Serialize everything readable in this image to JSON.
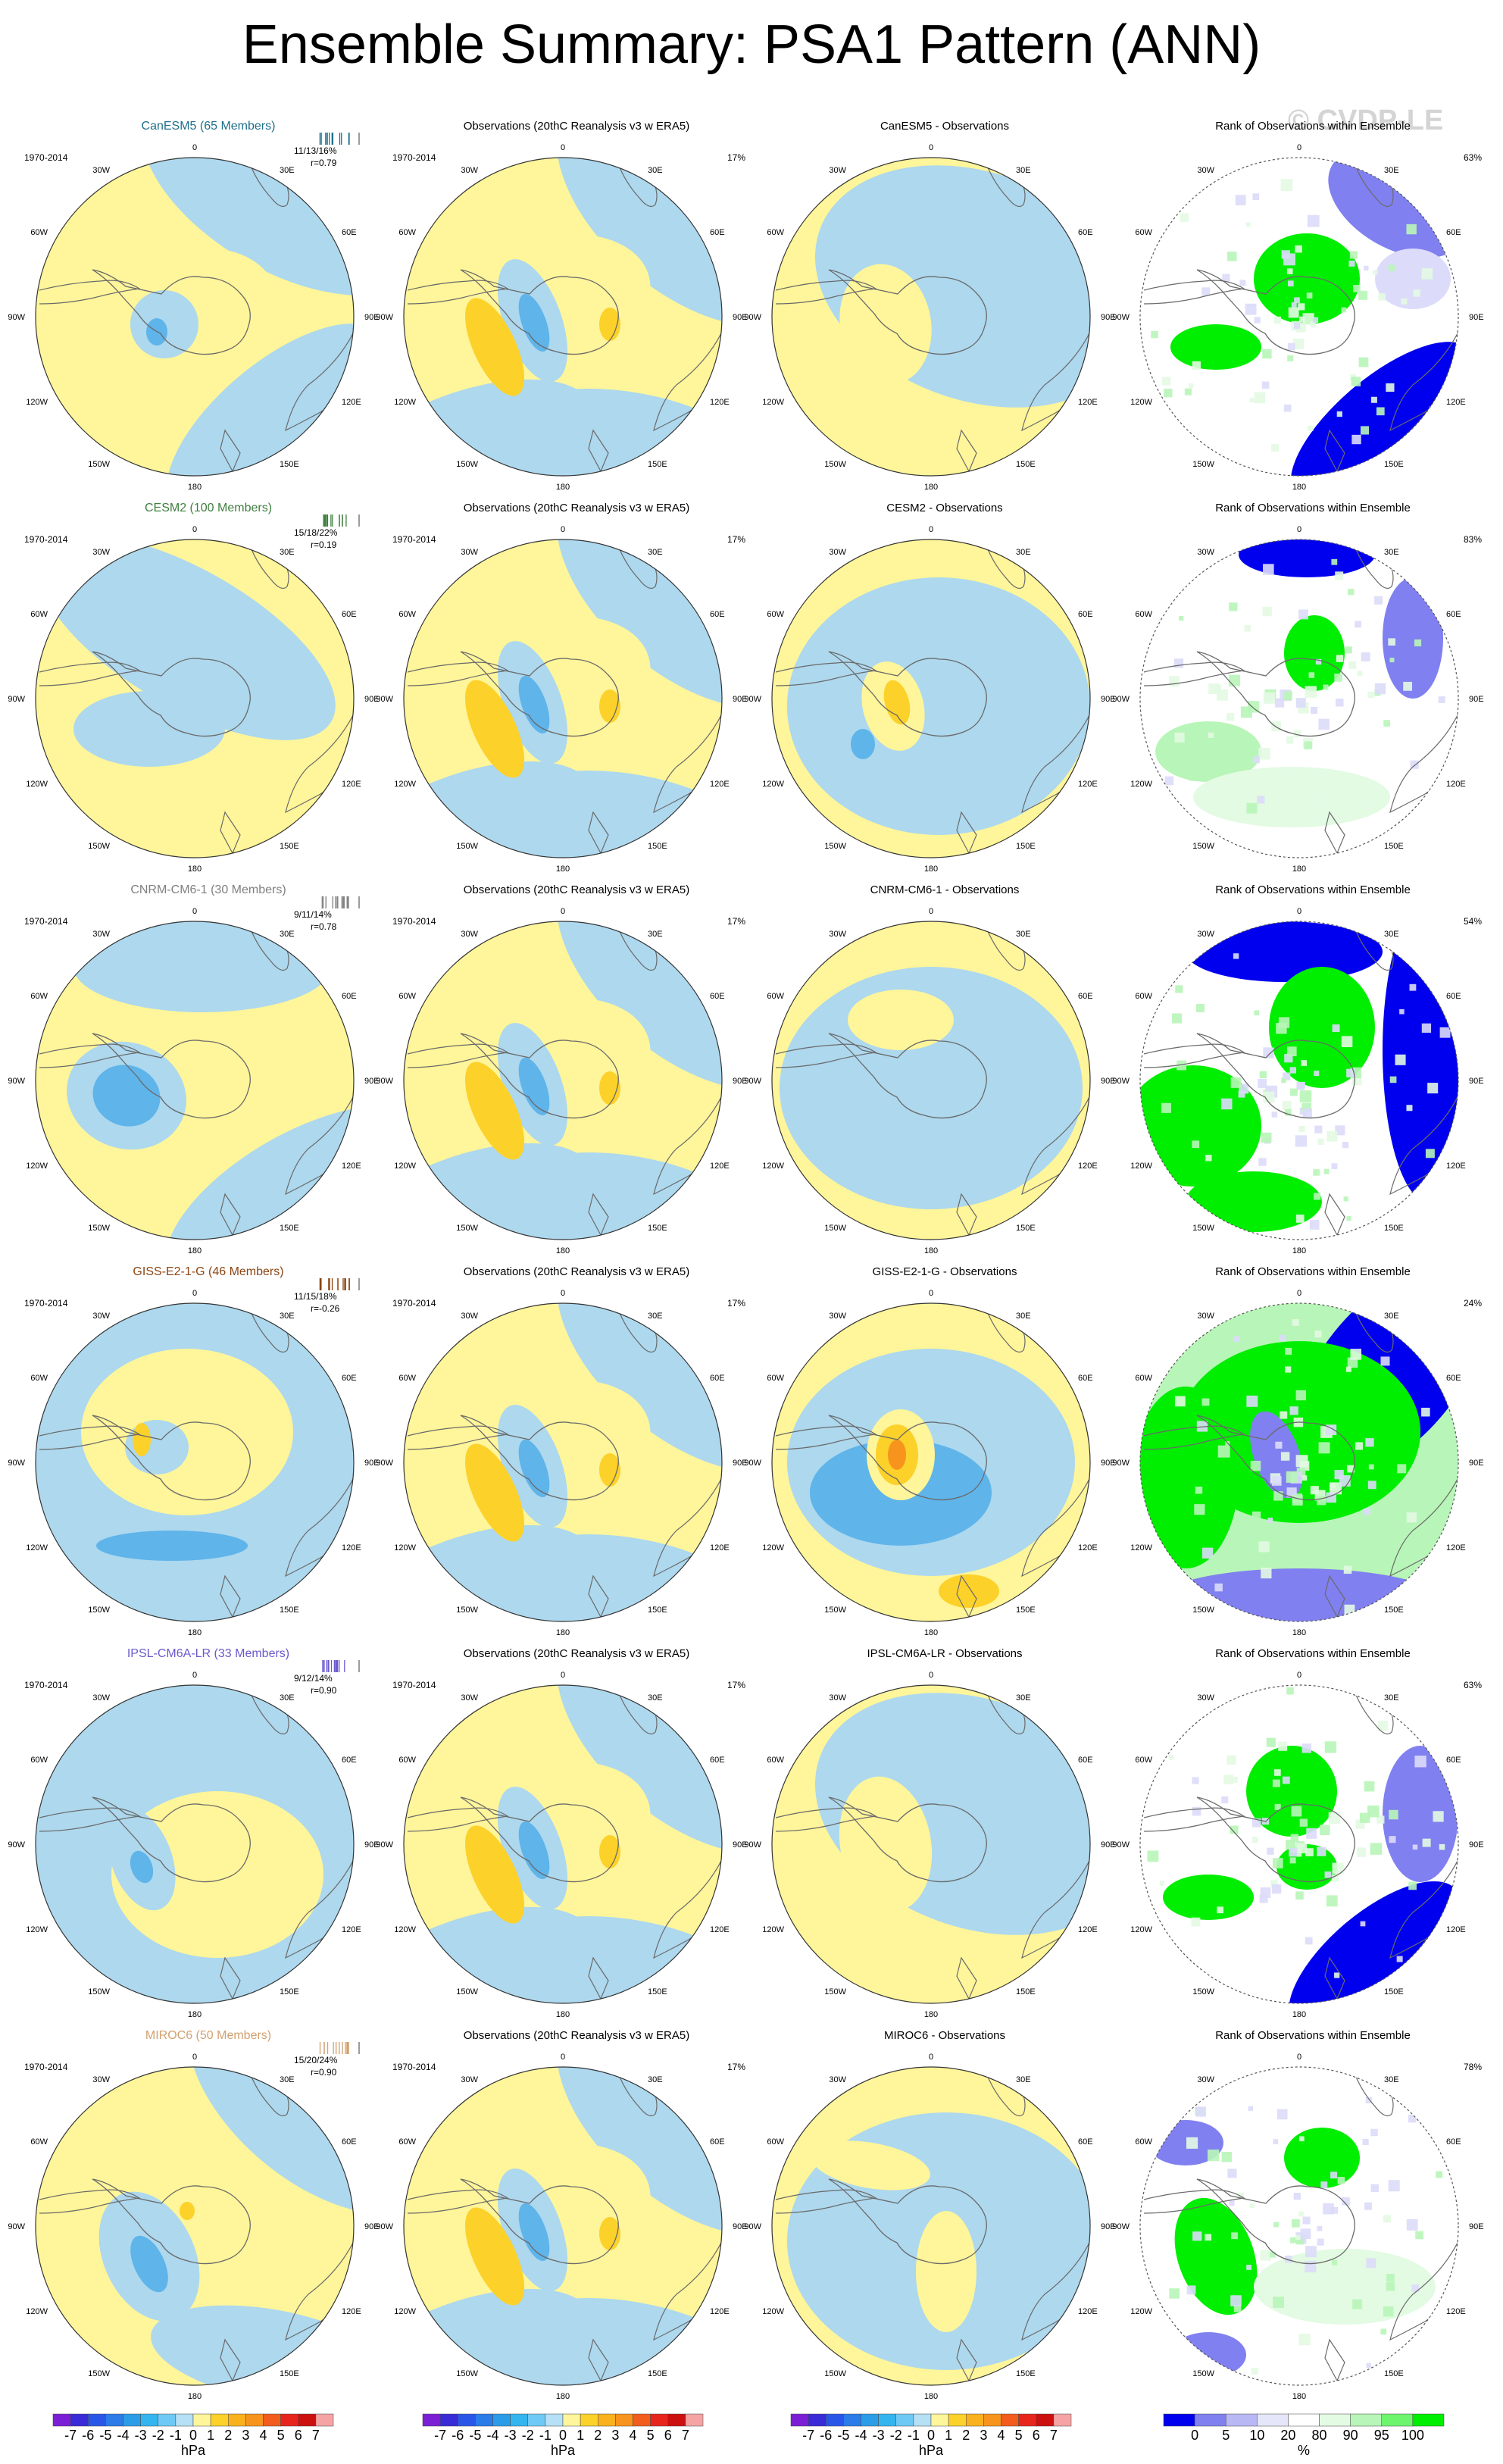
{
  "title": "Ensemble Summary: PSA1 Pattern (ANN)",
  "watermark": "© CVDP-LE",
  "period": "1970-2014",
  "obs_title": "Observations (20thC Reanalysis v3 w ERA5)",
  "rank_title": "Rank of Observations within Ensemble",
  "obs_pct": "17%",
  "lon_labels": [
    "0",
    "30E",
    "60E",
    "90E",
    "120E",
    "150E",
    "180",
    "150W",
    "120W",
    "90W",
    "60W",
    "30W"
  ],
  "colors": {
    "yellow": "#fff59a",
    "blue": "#add8ee",
    "mid_blue": "#5fb4ea",
    "orange": "#fcd12a",
    "dark_orange": "#f7941d",
    "green": "#00ee00",
    "light_green": "#b8f5b8",
    "pale_green": "#e3fae3",
    "rank_blue": "#0000ee",
    "rank_mid_blue": "#8080f0",
    "rank_pale_blue": "#dcdcfa",
    "coast": "#6a6a6a"
  },
  "rows": [
    {
      "model": "CanESM5 (65 Members)",
      "model_color": "#1f6f8b",
      "stats": "11/13/16%",
      "r": "r=0.79",
      "diff_title": "CanESM5 - Observations",
      "rank_pct": "63%"
    },
    {
      "model": "CESM2 (100 Members)",
      "model_color": "#3f7f3f",
      "stats": "15/18/22%",
      "r": "r=0.19",
      "diff_title": "CESM2 - Observations",
      "rank_pct": "83%"
    },
    {
      "model": "CNRM-CM6-1 (30 Members)",
      "model_color": "#808080",
      "stats": "9/11/14%",
      "r": "r=0.78",
      "diff_title": "CNRM-CM6-1 - Observations",
      "rank_pct": "54%"
    },
    {
      "model": "GISS-E2-1-G (46 Members)",
      "model_color": "#8b4513",
      "stats": "11/15/18%",
      "r": "r=-0.26",
      "diff_title": "GISS-E2-1-G - Observations",
      "rank_pct": "24%"
    },
    {
      "model": "IPSL-CM6A-LR (33 Members)",
      "model_color": "#6a5acd",
      "stats": "9/12/14%",
      "r": "r=0.90",
      "diff_title": "IPSL-CM6A-LR - Observations",
      "rank_pct": "63%"
    },
    {
      "model": "MIROC6 (50 Members)",
      "model_color": "#d2a070",
      "stats": "15/20/24%",
      "r": "r=0.90",
      "diff_title": "MIROC6 - Observations",
      "rank_pct": "78%"
    }
  ],
  "chart_data": {
    "type": "heatmap",
    "title": "Ensemble Summary: PSA1 Pattern (ANN)",
    "projection": "south polar stereographic",
    "panels_per_row": [
      "model ensemble pattern",
      "observations pattern",
      "model minus observations",
      "rank of observations within ensemble"
    ],
    "pattern_colorbar": {
      "unit": "hPa",
      "levels": [
        -7,
        -6,
        -5,
        -4,
        -3,
        -2,
        -1,
        0,
        1,
        2,
        3,
        4,
        5,
        6,
        7
      ],
      "tick_labels": [
        "-7",
        "-6",
        "-5",
        "-4",
        "-3",
        "-2",
        "-1",
        "0",
        "1",
        "2",
        "3",
        "4",
        "5",
        "6",
        "7"
      ],
      "colors": [
        "#7b1fd6",
        "#3a2bd8",
        "#2a56e8",
        "#2b7be8",
        "#2b9de8",
        "#33b5ef",
        "#6ecaf5",
        "#b5e0f5",
        "#fff59a",
        "#fcd12a",
        "#f9b21d",
        "#f7941d",
        "#f25c1d",
        "#e8251d",
        "#cc1010",
        "#f5a3a3"
      ]
    },
    "rank_colorbar": {
      "unit": "%",
      "levels": [
        0,
        5,
        10,
        20,
        80,
        90,
        95,
        100
      ],
      "tick_labels": [
        "0",
        "5",
        "10",
        "20",
        "80",
        "90",
        "95",
        "100"
      ],
      "colors": [
        "#0000ee",
        "#8080f0",
        "#b8b8f5",
        "#e6e6fa",
        "#ffffff",
        "#e3fae3",
        "#b8f5b8",
        "#6ef56e",
        "#00ee00"
      ]
    }
  }
}
